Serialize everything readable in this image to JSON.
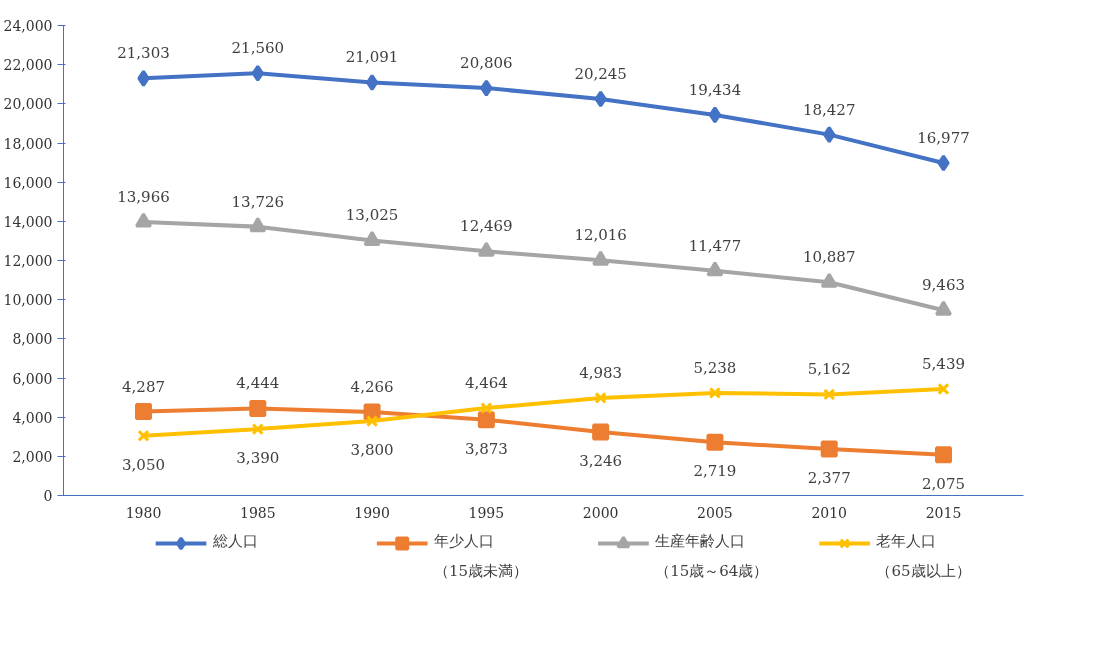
{
  "chart_data": {
    "type": "line",
    "categories": [
      "1980",
      "1985",
      "1990",
      "1995",
      "2000",
      "2005",
      "2010",
      "2015"
    ],
    "series": [
      {
        "name": "総人口",
        "color": "#4472c4",
        "marker": "diamond",
        "values": [
          21303,
          21560,
          21091,
          20806,
          20245,
          19434,
          18427,
          16977
        ],
        "value_labels": [
          "21,303",
          "21,560",
          "21,091",
          "20,806",
          "20,245",
          "19,434",
          "18,427",
          "16,977"
        ]
      },
      {
        "name": "年少人口（15歳未満）",
        "color": "#ed7d31",
        "marker": "square",
        "values": [
          4287,
          4444,
          4266,
          3873,
          3246,
          2719,
          2377,
          2075
        ],
        "value_labels": [
          "4,287",
          "4,444",
          "4,266",
          "3,873",
          "3,246",
          "2,719",
          "2,377",
          "2,075"
        ]
      },
      {
        "name": "生産年齢人口（15歳～64歳）",
        "color": "#a5a5a5",
        "marker": "triangle",
        "values": [
          13966,
          13726,
          13025,
          12469,
          12016,
          11477,
          10887,
          9463
        ],
        "value_labels": [
          "13,966",
          "13,726",
          "13,025",
          "12,469",
          "12,016",
          "11,477",
          "10,887",
          "9,463"
        ]
      },
      {
        "name": "老年人口（65歳以上）",
        "color": "#ffc000",
        "marker": "cross",
        "values": [
          3050,
          3390,
          3800,
          4464,
          4983,
          5238,
          5162,
          5439
        ],
        "value_labels": [
          "3,050",
          "3,390",
          "3,800",
          "4,464",
          "4,983",
          "5,238",
          "5,162",
          "5,439"
        ]
      }
    ],
    "ylim": [
      0,
      24000
    ],
    "yticks": [
      0,
      {
        "value": 2000,
        "label": "2,000"
      },
      {
        "value": 4000,
        "label": "4,000"
      },
      {
        "value": 6000,
        "label": "6,000"
      },
      {
        "value": 8000,
        "label": "8,000"
      },
      {
        "value": 10000,
        "label": "10,000"
      },
      {
        "value": 12000,
        "label": "12,000"
      },
      {
        "value": 14000,
        "label": "14,000"
      },
      {
        "value": 16000,
        "label": "16,000"
      },
      {
        "value": 18000,
        "label": "18,000"
      },
      {
        "value": 20000,
        "label": "20,000"
      },
      {
        "value": 22000,
        "label": "22,000"
      },
      {
        "value": 24000,
        "label": "24,000"
      }
    ],
    "grid": false,
    "legend": "bottom",
    "line_style": "solid"
  }
}
